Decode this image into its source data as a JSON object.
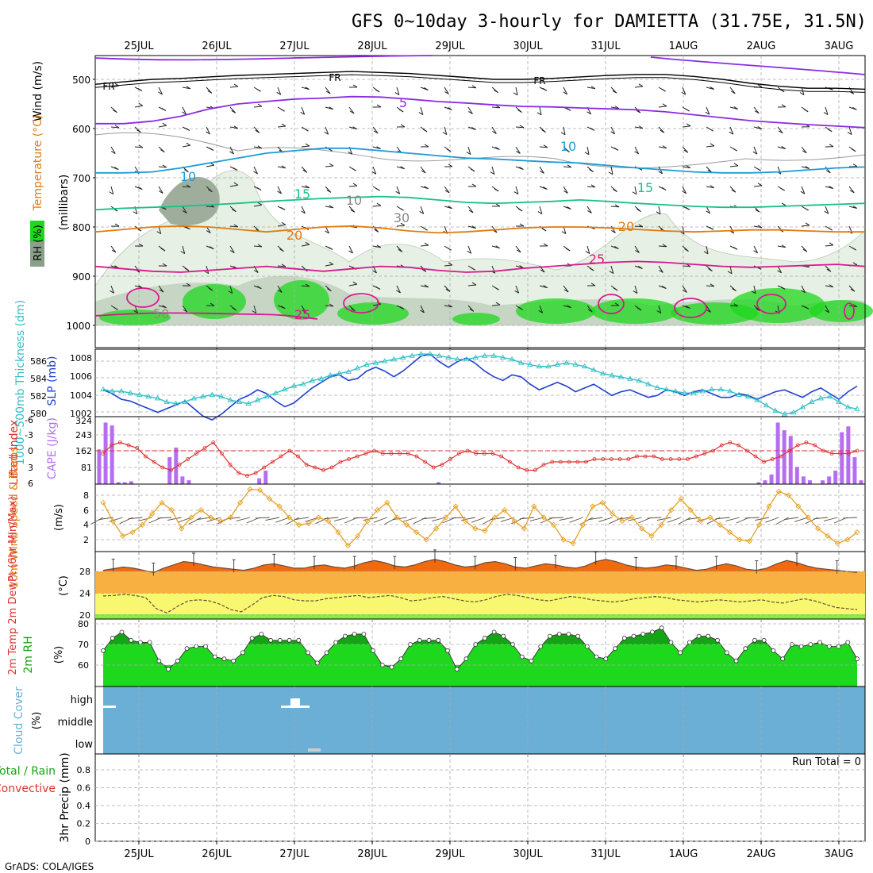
{
  "title": "GFS 0~10day 3-hourly for DAMIETTA (31.75E, 31.5N)",
  "footer": "GrADS: COLA/IGES",
  "x_axis": {
    "top_labels": [
      "25JUL",
      "26JUL",
      "27JUL",
      "28JUL",
      "29JUL",
      "30JUL",
      "31JUL",
      "1AUG",
      "2AUG",
      "3AUG"
    ],
    "bottom_labels": [
      "25JUL",
      "26JUL",
      "27JUL",
      "28JUL",
      "29JUL",
      "30JUL",
      "31JUL",
      "1AUG",
      "2AUG",
      "3AUG"
    ]
  },
  "panels": {
    "upper_air": {
      "ylabel_wind": "Wind (m/s)",
      "ylabel_temp": "Temperature (°C)",
      "ylabel_rh": "RH (%)",
      "ylabel_units": "(millibars)",
      "yticks": [
        "500",
        "600",
        "700",
        "800",
        "900",
        "1000"
      ],
      "contour_labels": [
        "FR",
        "FR",
        "FR",
        "5",
        "10",
        "10",
        "15",
        "15",
        "20",
        "20",
        "25",
        "25",
        "10",
        "30",
        "50"
      ]
    },
    "slp": {
      "ylabel_left": "1000~500mb Thickness (dm)",
      "ylabel_right": "SLP (mb)",
      "left_ticks": [
        "580",
        "582",
        "584",
        "586"
      ],
      "right_ticks": [
        "1002",
        "1004",
        "1006",
        "1008"
      ]
    },
    "cape": {
      "ylabel_left": "Lifted Index",
      "ylabel_right": "CAPE (J/kg)",
      "left_ticks": [
        "-6",
        "-3",
        "0",
        "3",
        "6"
      ],
      "right_ticks": [
        "324",
        "243",
        "162",
        "81"
      ]
    },
    "wind10": {
      "ylabel": "10m Wind Speed & Barbs",
      "units": "(m/s)",
      "yticks": [
        "2",
        "4",
        "6",
        "8"
      ]
    },
    "temp2m": {
      "ylabel": "2m Temp 2m DewPt (6hr Min/Max)",
      "units": "(°C)",
      "yticks": [
        "20",
        "24",
        "28"
      ]
    },
    "rh2m": {
      "ylabel": "2m RH",
      "units": "(%)",
      "yticks": [
        "60",
        "70",
        "80"
      ]
    },
    "cloud": {
      "ylabel": "Cloud Cover",
      "units": "(%)",
      "levels": [
        "high",
        "middle",
        "low"
      ]
    },
    "precip": {
      "ylabel": "3hr Precip (mm)",
      "legend_total": "Total / Rain",
      "legend_conv": "Convective",
      "run_total": "Run Total = 0",
      "yticks": [
        "0",
        "0.2",
        "0.4",
        "0.6",
        "0.8"
      ]
    }
  },
  "colors": {
    "bg": "#ffffff",
    "grid": "#aaaaaa",
    "purple": "#8a2be2",
    "blue": "#1f9ad6",
    "teal": "#18c08a",
    "orange": "#e07b10",
    "magenta": "#d61a8c",
    "cyan": "#30c0c8",
    "slp_blue": "#2040d0",
    "red": "#e03030",
    "cape_bar": "#b66ef0",
    "wind_line": "#e8a020",
    "rh_green": "#1ed81e",
    "rh_dark": "#14a514",
    "cloud_blue": "#6baed6",
    "temp_dark": "#f26a0e",
    "temp_mid": "#f8b040",
    "temp_light": "#f8f870"
  },
  "chart_data": {
    "type": "line",
    "x_step_hours": 3,
    "x_start": "2024-07-24T15:00",
    "series": [
      {
        "id": "slp",
        "units": "mb",
        "values": [
          1004.6,
          1004.2,
          1003.6,
          1003.4,
          1003.0,
          1002.6,
          1002.2,
          1002.6,
          1003.0,
          1003.4,
          1002.6,
          1001.8,
          1001.4,
          1002.0,
          1002.8,
          1003.6,
          1004.0,
          1004.6,
          1004.2,
          1003.4,
          1002.8,
          1003.2,
          1004.0,
          1004.8,
          1005.4,
          1006.0,
          1006.2,
          1005.6,
          1005.8,
          1006.6,
          1007.0,
          1006.6,
          1006.0,
          1006.6,
          1007.4,
          1008.2,
          1008.4,
          1007.6,
          1007.0,
          1007.6,
          1008.0,
          1007.4,
          1006.6,
          1006.0,
          1005.6,
          1006.2,
          1006.0,
          1005.2,
          1004.6,
          1005.0,
          1005.4,
          1005.0,
          1004.4,
          1004.8,
          1005.2,
          1004.6,
          1004.0,
          1004.4,
          1004.6,
          1004.2,
          1003.8,
          1004.0,
          1004.6,
          1004.4,
          1004.0,
          1004.4,
          1004.6,
          1004.2,
          1003.8,
          1003.8,
          1004.2,
          1004.0,
          1003.6,
          1004.0,
          1004.4,
          1004.6,
          1004.2,
          1003.8,
          1004.4,
          1004.8,
          1004.2,
          1003.6,
          1004.4,
          1005.0
        ]
      },
      {
        "id": "thickness",
        "units": "dm",
        "values": [
          582.8,
          582.6,
          582.6,
          582.4,
          582.2,
          582.0,
          581.8,
          581.4,
          581.2,
          581.4,
          581.8,
          582.0,
          582.2,
          582.0,
          581.6,
          581.4,
          581.2,
          581.6,
          582.0,
          582.4,
          582.8,
          583.2,
          583.4,
          583.8,
          584.0,
          584.4,
          584.6,
          584.8,
          585.2,
          585.6,
          585.8,
          586.0,
          586.2,
          586.4,
          586.6,
          586.8,
          586.8,
          586.6,
          586.4,
          586.2,
          586.2,
          586.4,
          586.6,
          586.6,
          586.4,
          586.2,
          585.8,
          585.6,
          585.4,
          585.4,
          585.6,
          585.8,
          585.6,
          585.4,
          585.0,
          584.6,
          584.4,
          584.2,
          584.0,
          583.8,
          583.4,
          583.0,
          582.8,
          582.6,
          582.4,
          582.4,
          582.6,
          582.8,
          582.8,
          582.6,
          582.2,
          582.0,
          581.6,
          581.0,
          580.4,
          580.0,
          580.2,
          580.8,
          581.4,
          581.8,
          582.0,
          581.4,
          580.8,
          580.6
        ]
      },
      {
        "id": "lifted_index",
        "units": "K",
        "values": [
          0.5,
          -1,
          -1.5,
          -1,
          -0.5,
          1,
          2,
          3,
          3.5,
          2.5,
          1.5,
          0.5,
          -0.5,
          -1.5,
          0.5,
          2.5,
          4,
          4.5,
          4,
          3,
          2,
          1,
          0,
          1,
          2.5,
          3,
          3.5,
          3,
          2,
          1.5,
          1,
          0.5,
          0,
          0.5,
          0.5,
          0.5,
          0.5,
          1,
          2,
          3,
          2.5,
          1.5,
          0.5,
          0,
          0.5,
          0.5,
          0.5,
          1,
          2,
          3,
          3.5,
          3.5,
          2.5,
          2,
          2,
          2,
          2,
          2,
          1.5,
          1.5,
          1.5,
          1.5,
          1.5,
          1,
          1,
          1,
          1.5,
          1.5,
          1.5,
          1.5,
          1,
          0.5,
          0,
          -1,
          -1.5,
          -1,
          0,
          1,
          2,
          1.5,
          1,
          0,
          -1,
          -1.5,
          -1,
          0,
          0.5,
          0.5,
          0.5,
          0
        ]
      },
      {
        "id": "cape",
        "units": "J/kg",
        "values": [
          180,
          320,
          305,
          10,
          10,
          15,
          0,
          0,
          0,
          0,
          0,
          140,
          190,
          40,
          20,
          0,
          0,
          0,
          0,
          0,
          0,
          0,
          0,
          0,
          0,
          30,
          70,
          0,
          0,
          0,
          0,
          0,
          0,
          0,
          0,
          0,
          0,
          0,
          0,
          0,
          0,
          0,
          0,
          0,
          0,
          0,
          0,
          0,
          0,
          0,
          0,
          0,
          0,
          10,
          0,
          0,
          0,
          0,
          0,
          0,
          0,
          0,
          0,
          0,
          0,
          0,
          0,
          0,
          0,
          0,
          0,
          0,
          0,
          0,
          0,
          0,
          0,
          0,
          0,
          0,
          0,
          0,
          0,
          0,
          0,
          0,
          0,
          0,
          0,
          0,
          0,
          0,
          0,
          0,
          0,
          0,
          0,
          0,
          0,
          0,
          0,
          0,
          0,
          10,
          20,
          50,
          320,
          280,
          250,
          90,
          40,
          20,
          0,
          20,
          40,
          70,
          270,
          300,
          140,
          20
        ]
      },
      {
        "id": "wind10_speed",
        "units": "m/s",
        "values": [
          7.0,
          4.5,
          2.5,
          3.0,
          4.0,
          5.5,
          7.0,
          6.0,
          3.5,
          5.0,
          6.0,
          5.0,
          4.5,
          5.0,
          7.0,
          8.8,
          8.7,
          7.5,
          6.5,
          5.0,
          4.0,
          4.2,
          5.0,
          4.5,
          3.0,
          1.2,
          2.5,
          4.5,
          6.0,
          7.0,
          5.0,
          4.0,
          3.0,
          2.0,
          3.5,
          5.0,
          6.5,
          4.5,
          3.5,
          3.2,
          5.0,
          6.0,
          4.5,
          3.5,
          6.5,
          5.0,
          4.0,
          2.0,
          1.5,
          4.0,
          6.5,
          7.0,
          5.5,
          4.5,
          5.0,
          3.5,
          2.5,
          4.0,
          6.0,
          7.5,
          6.0,
          4.5,
          5.0,
          4.0,
          3.0,
          2.0,
          1.8,
          4.0,
          6.5,
          8.5,
          8.0,
          6.5,
          5.0,
          3.5,
          2.5,
          1.5,
          2.0,
          3.0
        ]
      },
      {
        "id": "temp2m",
        "units": "C",
        "values": [
          28.2,
          28.5,
          28.8,
          28.6,
          28.2,
          27.8,
          28.6,
          29.2,
          29.8,
          29.6,
          29.2,
          28.8,
          28.6,
          28.4,
          28.2,
          28.6,
          29.2,
          29.4,
          29.0,
          28.6,
          28.6,
          29.0,
          29.2,
          28.8,
          28.6,
          29.0,
          29.6,
          30.0,
          29.6,
          29.0,
          28.8,
          29.2,
          29.8,
          30.2,
          29.8,
          29.2,
          28.8,
          29.0,
          29.6,
          29.8,
          29.4,
          28.8,
          28.6,
          29.0,
          29.4,
          29.2,
          28.8,
          28.6,
          29.0,
          29.8,
          30.2,
          29.8,
          29.2,
          28.8,
          28.6,
          28.8,
          29.2,
          29.0,
          28.6,
          28.2,
          28.4,
          29.0,
          29.4,
          29.0,
          28.4,
          28.2,
          28.6,
          29.4,
          30.0,
          29.6,
          29.0,
          28.6,
          28.4,
          28.2,
          28.0,
          27.8
        ]
      },
      {
        "id": "dewpt2m",
        "units": "C",
        "values": [
          23.5,
          23.6,
          23.8,
          23.6,
          23.2,
          21.2,
          20.4,
          21.6,
          22.6,
          22.8,
          22.6,
          22.0,
          21.0,
          20.6,
          21.8,
          23.2,
          23.6,
          23.4,
          22.8,
          22.6,
          22.6,
          23.0,
          23.2,
          23.4,
          23.6,
          23.2,
          23.4,
          23.6,
          23.2,
          22.6,
          22.8,
          23.2,
          23.4,
          23.0,
          22.6,
          22.4,
          22.8,
          23.4,
          23.8,
          23.6,
          23.2,
          22.8,
          22.6,
          23.0,
          23.4,
          23.2,
          22.8,
          22.6,
          22.4,
          22.6,
          23.0,
          23.2,
          23.4,
          23.2,
          22.8,
          22.6,
          22.4,
          22.6,
          22.8,
          22.6,
          22.4,
          22.6,
          22.8,
          22.4,
          22.2,
          22.6,
          23.0,
          22.6,
          22.0,
          21.4,
          21.2,
          21.0
        ]
      },
      {
        "id": "rh2m",
        "units": "%",
        "values": [
          67,
          73,
          76,
          72,
          71,
          71,
          62,
          58,
          62,
          68,
          69,
          69,
          64,
          63,
          62,
          66,
          73,
          75,
          72,
          72,
          72,
          72,
          66,
          61,
          66,
          71,
          74,
          75,
          75,
          67,
          60,
          59,
          63,
          70,
          72,
          72,
          72,
          67,
          58,
          63,
          70,
          73,
          76,
          74,
          70,
          64,
          62,
          69,
          74,
          75,
          75,
          74,
          69,
          64,
          63,
          68,
          73,
          74,
          75,
          76,
          78,
          71,
          66,
          71,
          74,
          74,
          72,
          66,
          62,
          68,
          72,
          72,
          67,
          63,
          70,
          69,
          70,
          71,
          69,
          69,
          71,
          63
        ]
      },
      {
        "id": "precip3h",
        "units": "mm",
        "values": [
          0,
          0,
          0,
          0,
          0,
          0,
          0,
          0,
          0,
          0,
          0,
          0,
          0,
          0,
          0,
          0,
          0,
          0,
          0,
          0,
          0,
          0,
          0,
          0,
          0,
          0,
          0,
          0,
          0,
          0,
          0,
          0,
          0,
          0,
          0,
          0,
          0,
          0,
          0,
          0,
          0,
          0,
          0,
          0,
          0,
          0,
          0,
          0,
          0,
          0,
          0,
          0,
          0,
          0,
          0,
          0,
          0,
          0,
          0,
          0,
          0,
          0,
          0,
          0,
          0,
          0,
          0,
          0,
          0,
          0,
          0,
          0,
          0,
          0,
          0,
          0,
          0,
          0,
          0,
          0,
          0,
          0,
          0,
          0,
          0,
          0
        ]
      }
    ],
    "upper_air_isotherms": [
      {
        "label": "FR",
        "pressure_mb": [
          510,
          505,
          500,
          498,
          495,
          492,
          490,
          488,
          486,
          484,
          486,
          488,
          492,
          496,
          500,
          500,
          498,
          495,
          492,
          490,
          490,
          494,
          500,
          508,
          514,
          518,
          518,
          520
        ]
      },
      {
        "label": "5",
        "pressure_mb": [
          590,
          590,
          585,
          575,
          560,
          550,
          545,
          540,
          538,
          535,
          536,
          540,
          545,
          548,
          552,
          555,
          556,
          558,
          560,
          562,
          566,
          572,
          578,
          584,
          588,
          592,
          595,
          598
        ]
      },
      {
        "label": "10",
        "pressure_mb": [
          690,
          690,
          688,
          680,
          670,
          660,
          650,
          645,
          640,
          640,
          645,
          650,
          655,
          660,
          662,
          665,
          668,
          670,
          675,
          680,
          684,
          688,
          690,
          690,
          688,
          684,
          680,
          678
        ]
      },
      {
        "label": "15",
        "pressure_mb": [
          765,
          762,
          760,
          758,
          755,
          752,
          748,
          745,
          742,
          740,
          738,
          740,
          745,
          750,
          752,
          750,
          748,
          745,
          748,
          752,
          755,
          758,
          760,
          760,
          758,
          756,
          754,
          752
        ]
      },
      {
        "label": "20",
        "pressure_mb": [
          810,
          805,
          800,
          798,
          800,
          805,
          810,
          805,
          800,
          798,
          802,
          808,
          812,
          810,
          806,
          802,
          800,
          800,
          802,
          805,
          808,
          810,
          808,
          806,
          806,
          808,
          810,
          810
        ]
      },
      {
        "label": "25",
        "pressure_mb": [
          880,
          885,
          890,
          892,
          888,
          884,
          880,
          885,
          890,
          885,
          880,
          882,
          888,
          892,
          890,
          884,
          880,
          876,
          872,
          870,
          872,
          876,
          880,
          882,
          880,
          878,
          876,
          880
        ]
      }
    ],
    "xlim": [
      "2024-07-24T15:00",
      "2024-08-03T09:00"
    ]
  }
}
